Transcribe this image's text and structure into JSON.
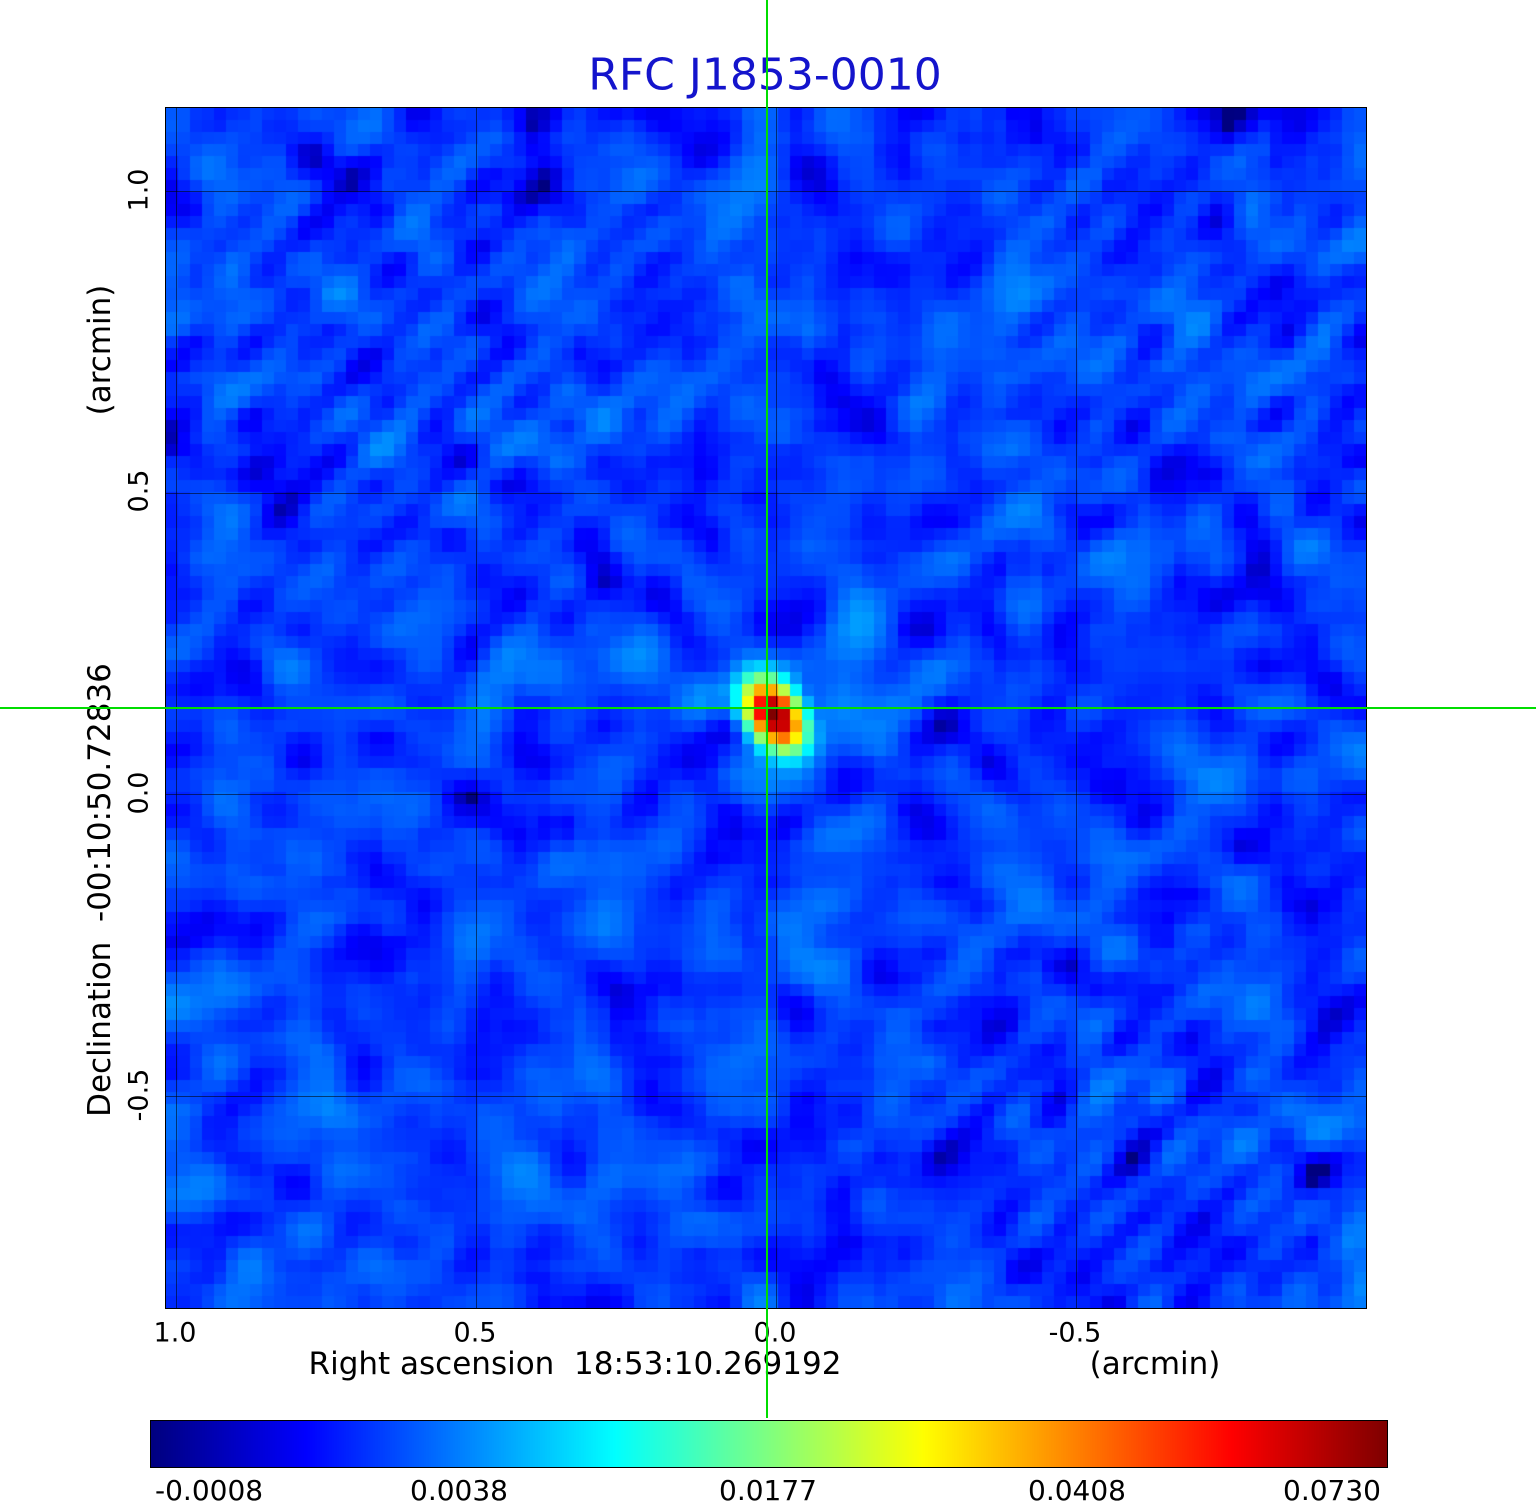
{
  "title": "RFC J1853-0010",
  "title_color": "#1414cc",
  "axes": {
    "x_label": "Right ascension  18:53:10.269192",
    "x_unit": "(arcmin)",
    "y_label": "Declination  -00:10:50.72836",
    "y_unit": "(arcmin)",
    "x_ticks": [
      "1.0",
      "0.5",
      "0.0",
      "-0.5"
    ],
    "y_ticks": [
      "1.0",
      "0.5",
      "0.0",
      "-0.5"
    ]
  },
  "colorbar": {
    "labels": [
      "-0.0008",
      "0.0038",
      "0.0177",
      "0.0408",
      "0.0730"
    ],
    "values": [
      -0.0008,
      0.0038,
      0.0177,
      0.0408,
      0.073
    ]
  },
  "chart_data": {
    "type": "heatmap",
    "title": "RFC J1853-0010",
    "xlabel": "Right ascension 18:53:10.269192 (arcmin)",
    "ylabel": "Declination -00:10:50.72836 (arcmin)",
    "x_range_arcmin": [
      1.02,
      -0.98
    ],
    "y_range_arcmin": [
      -0.85,
      1.14
    ],
    "grid": true,
    "grid_ticks_arcmin": [
      1.0,
      0.5,
      0.0,
      -0.5
    ],
    "colormap": "jet",
    "intensity_scale": "quadratic",
    "value_min": -0.0008,
    "value_max": 0.073,
    "colorbar_tick_values": [
      -0.0008,
      0.0038,
      0.0177,
      0.0408,
      0.073
    ],
    "background_level": 0.0017,
    "noise_rms": 0.0006,
    "pixel_cells": 100,
    "crosshair_color": "#00dd00",
    "source": {
      "ra_offset_arcmin": 0.013,
      "dec_offset_arcmin": 0.141,
      "peak": 0.073,
      "major_sigma_cells": 1.9,
      "minor_sigma_cells": 1.25,
      "position_angle_deg": 55
    }
  }
}
